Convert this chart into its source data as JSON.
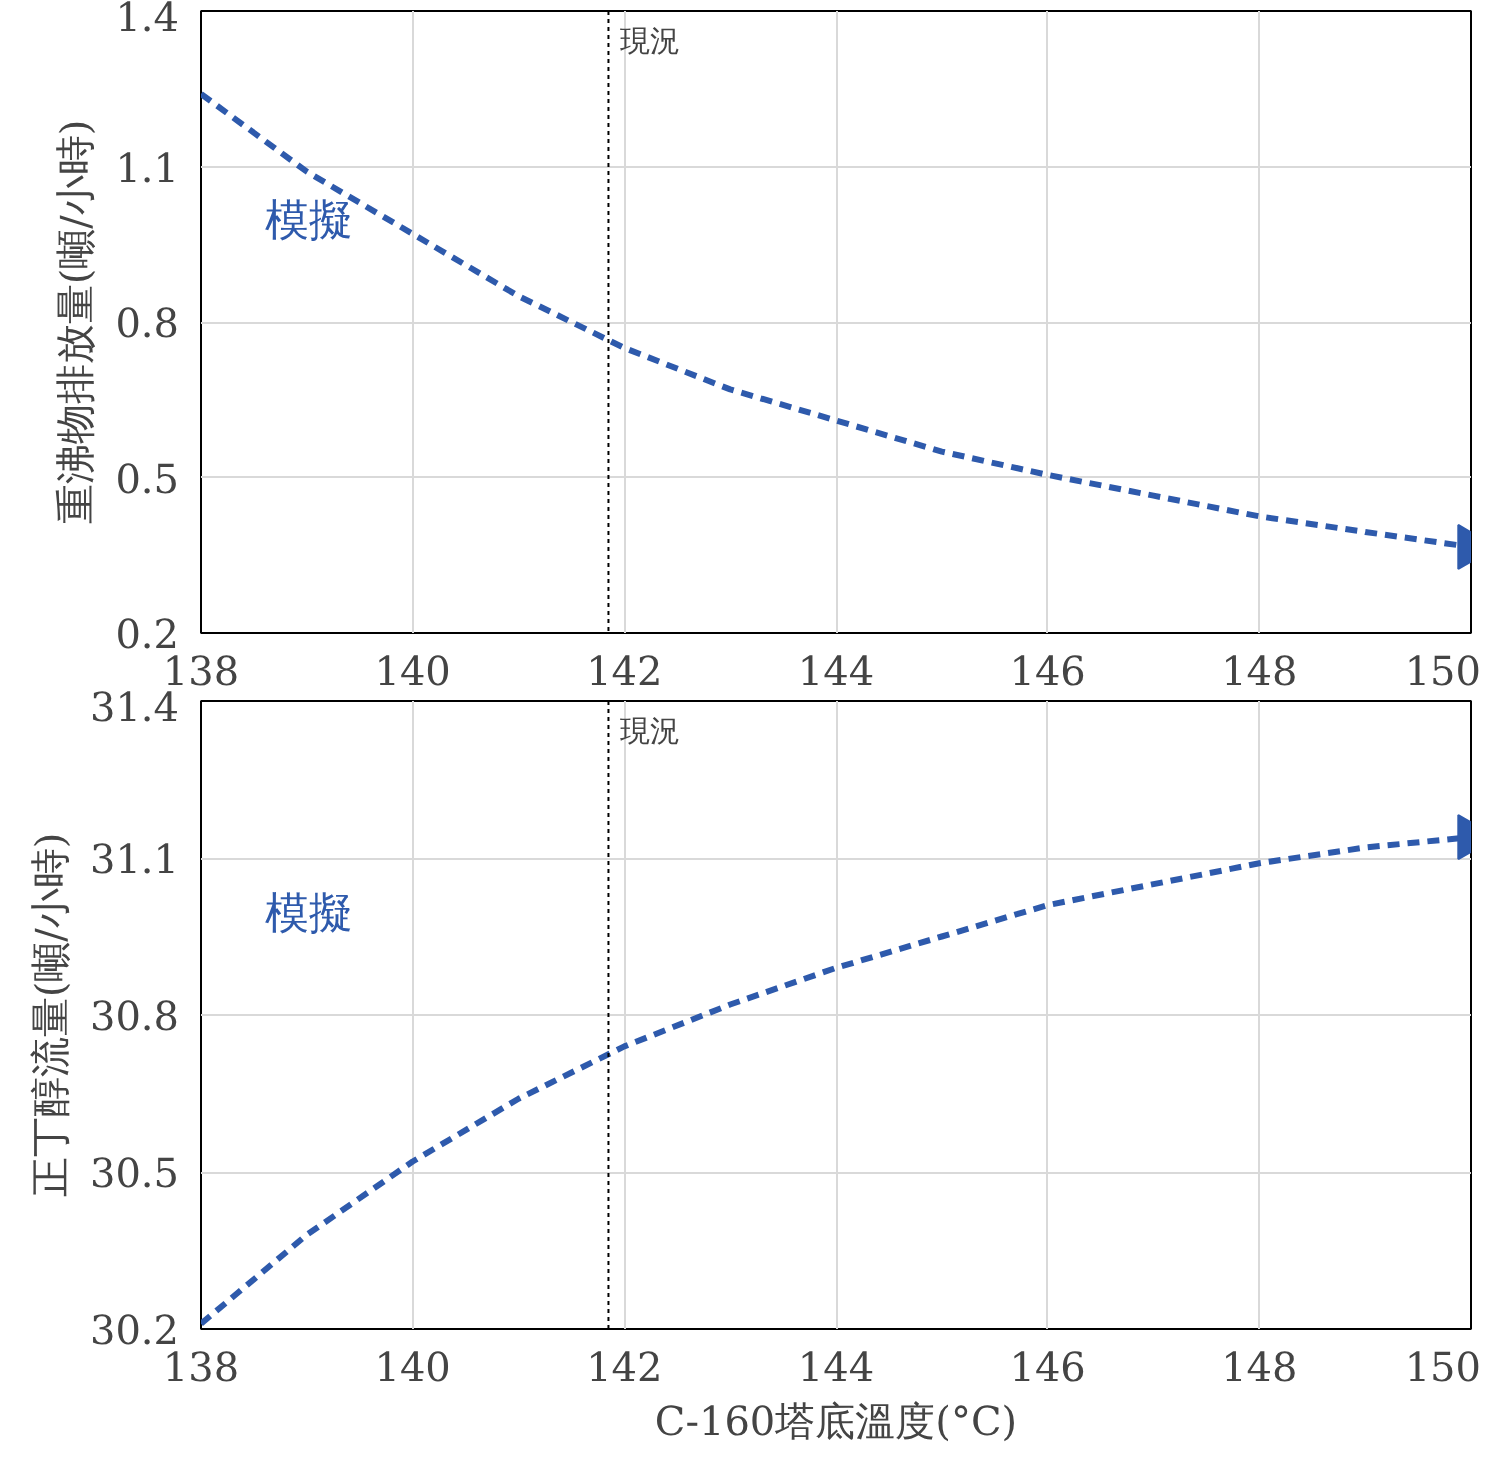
{
  "chart_data": [
    {
      "type": "line",
      "xlabel": null,
      "ylabel": "重沸物排放量(噸/小時)",
      "x": [
        138,
        139,
        140,
        141,
        142,
        143,
        144,
        145,
        146,
        147,
        148,
        149,
        150
      ],
      "series": [
        {
          "name": "模擬",
          "color": "#2e5aac",
          "values": [
            1.24,
            1.09,
            0.97,
            0.85,
            0.75,
            0.67,
            0.61,
            0.55,
            0.505,
            0.465,
            0.425,
            0.395,
            0.366
          ]
        }
      ],
      "xlim": [
        138,
        150
      ],
      "xticks": [
        138,
        140,
        142,
        144,
        146,
        148,
        150
      ],
      "ylim": [
        0.2,
        1.4
      ],
      "yticks": [
        0.2,
        0.5,
        0.8,
        1.1,
        1.4
      ],
      "ref_lines": [
        {
          "axis": "x",
          "value": 141.85,
          "label": "現況",
          "color": "#000000",
          "line_style": "dotted"
        }
      ],
      "grid": true,
      "line_style": "dashed",
      "marker": "none"
    },
    {
      "type": "line",
      "xlabel": "C-160塔底溫度(°C)",
      "ylabel": "正丁醇流量(噸/小時)",
      "x": [
        138,
        139,
        140,
        141,
        142,
        143,
        144,
        145,
        146,
        147,
        148,
        149,
        150
      ],
      "series": [
        {
          "name": "模擬",
          "color": "#2e5aac",
          "values": [
            30.21,
            30.38,
            30.52,
            30.64,
            30.74,
            30.82,
            30.89,
            30.95,
            31.01,
            31.05,
            31.09,
            31.12,
            31.14
          ]
        }
      ],
      "xlim": [
        138,
        150
      ],
      "xticks": [
        138,
        140,
        142,
        144,
        146,
        148,
        150
      ],
      "ylim": [
        30.2,
        31.4
      ],
      "yticks": [
        30.2,
        30.5,
        30.8,
        31.1,
        31.4
      ],
      "ref_lines": [
        {
          "axis": "x",
          "value": 141.85,
          "label": "現況",
          "color": "#000000",
          "line_style": "dotted"
        }
      ],
      "grid": true,
      "line_style": "dashed",
      "marker": "none"
    }
  ]
}
